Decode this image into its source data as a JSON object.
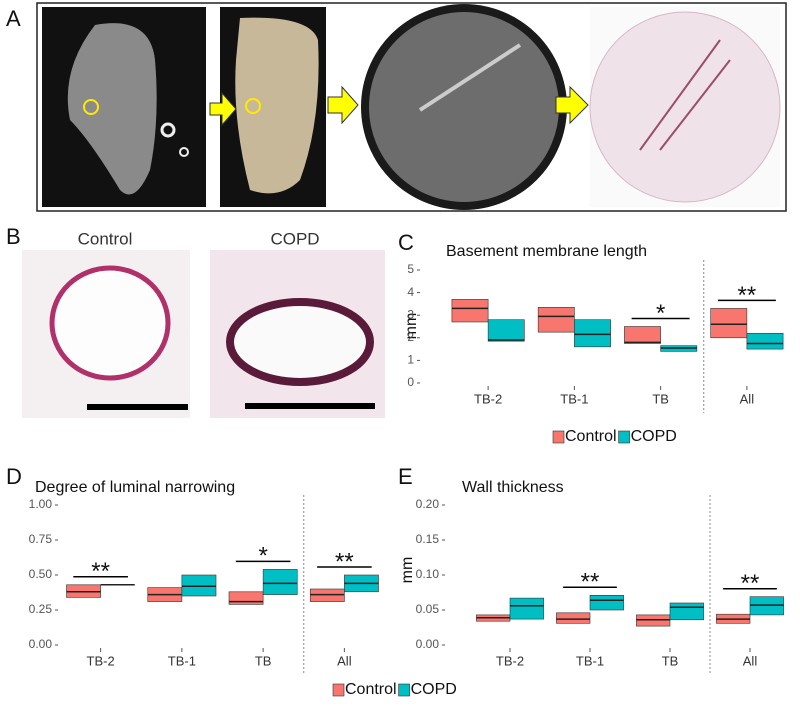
{
  "figure": {
    "panel_labels": [
      "A",
      "B",
      "C",
      "D",
      "E"
    ],
    "panel_b_labels": [
      "Control",
      "COPD"
    ]
  },
  "chart_data": [
    {
      "type": "box",
      "title": "Basement membrane length",
      "ylabel": "mm",
      "categories": [
        "TB-2",
        "TB-1",
        "TB",
        "All"
      ],
      "significance": [
        null,
        null,
        "*",
        "**"
      ],
      "ylim": [
        0,
        5
      ],
      "yticks": [
        0,
        1,
        2,
        3,
        4,
        5
      ],
      "series": [
        {
          "name": "Control",
          "color": "#f8766d",
          "q1": [
            2.7,
            2.25,
            1.75,
            2.0
          ],
          "median": [
            3.3,
            2.95,
            1.8,
            2.6
          ],
          "q3": [
            3.7,
            3.35,
            2.5,
            3.3
          ]
        },
        {
          "name": "COPD",
          "color": "#00bfc4",
          "q1": [
            1.85,
            1.6,
            1.4,
            1.5
          ],
          "median": [
            1.9,
            2.15,
            1.55,
            1.75
          ],
          "q3": [
            2.8,
            2.8,
            1.65,
            2.2
          ]
        }
      ]
    },
    {
      "type": "box",
      "title": "Degree of luminal narrowing",
      "categories": [
        "TB-2",
        "TB-1",
        "TB",
        "All"
      ],
      "significance": [
        "**",
        null,
        "*",
        "**"
      ],
      "ylim": [
        0,
        1
      ],
      "yticks": [
        {
          "value": 0,
          "label": "0.00"
        },
        {
          "value": 0.25,
          "label": "0.25"
        },
        {
          "value": 0.5,
          "label": "0.50"
        },
        {
          "value": 0.75,
          "label": "0.75"
        },
        {
          "value": 1,
          "label": "1.00"
        }
      ],
      "series": [
        {
          "name": "Control",
          "color": "#f8766d",
          "q1": [
            0.34,
            0.31,
            0.29,
            0.31
          ],
          "median": [
            0.38,
            0.36,
            0.31,
            0.36
          ],
          "q3": [
            0.43,
            0.41,
            0.38,
            0.4
          ]
        },
        {
          "name": "COPD",
          "color": "#00bfc4",
          "q1": [
            0.43,
            0.35,
            0.36,
            0.38
          ],
          "median": [
            0.43,
            0.42,
            0.44,
            0.44
          ],
          "q3": [
            0.43,
            0.5,
            0.54,
            0.5
          ]
        }
      ]
    },
    {
      "type": "box",
      "title": "Wall thickness",
      "ylabel": "mm",
      "categories": [
        "TB-2",
        "TB-1",
        "TB",
        "All"
      ],
      "significance": [
        null,
        "**",
        null,
        "**"
      ],
      "ylim": [
        0,
        0.2
      ],
      "yticks": [
        {
          "value": 0,
          "label": "0.00"
        },
        {
          "value": 0.05,
          "label": "0.05"
        },
        {
          "value": 0.1,
          "label": "0.10"
        },
        {
          "value": 0.15,
          "label": "0.15"
        },
        {
          "value": 0.2,
          "label": "0.20"
        }
      ],
      "series": [
        {
          "name": "Control",
          "color": "#f8766d",
          "q1": [
            0.034,
            0.031,
            0.027,
            0.031
          ],
          "median": [
            0.039,
            0.037,
            0.036,
            0.037
          ],
          "q3": [
            0.043,
            0.046,
            0.043,
            0.044
          ]
        },
        {
          "name": "COPD",
          "color": "#00bfc4",
          "q1": [
            0.037,
            0.05,
            0.036,
            0.043
          ],
          "median": [
            0.056,
            0.064,
            0.054,
            0.057
          ],
          "q3": [
            0.067,
            0.071,
            0.06,
            0.069
          ]
        }
      ]
    }
  ]
}
